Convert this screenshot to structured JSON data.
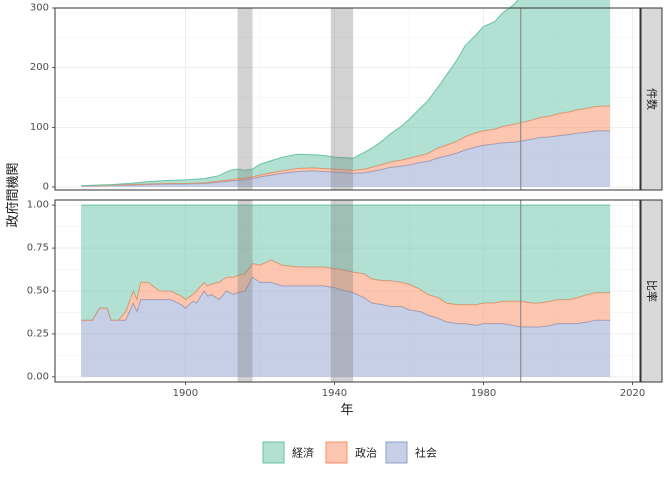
{
  "chart_data": {
    "type": "area",
    "xlabel": "年",
    "ylabel": "政府間機関",
    "x_ticks": [
      "1900",
      "1940",
      "1980",
      "2020"
    ],
    "x_tick_values": [
      1900,
      1940,
      1980,
      2020
    ],
    "xlim": [
      1865,
      2022
    ],
    "shaded_periods": [
      [
        1914,
        1918
      ],
      [
        1939,
        1945
      ]
    ],
    "vline": 1990,
    "colors": {
      "経済": "#66c2a5",
      "政治": "#fc8d62",
      "社会": "#8da0cb"
    },
    "legend": {
      "position": "bottom",
      "entries": [
        "経済",
        "政治",
        "社会"
      ]
    },
    "panels": [
      {
        "strip": "件数",
        "ylim": [
          -5,
          300
        ],
        "y_ticks": [
          "0",
          "100",
          "200",
          "300"
        ],
        "y_tick_values": [
          0,
          100,
          200,
          300
        ],
        "x": [
          1872,
          1875,
          1880,
          1885,
          1890,
          1895,
          1900,
          1905,
          1909,
          1912,
          1914,
          1916,
          1918,
          1920,
          1923,
          1926,
          1930,
          1934,
          1937,
          1940,
          1943,
          1945,
          1948,
          1950,
          1953,
          1955,
          1958,
          1960,
          1963,
          1965,
          1968,
          1970,
          1973,
          1975,
          1978,
          1980,
          1983,
          1985,
          1988,
          1990,
          1993,
          1995,
          1998,
          2000,
          2003,
          2005,
          2008,
          2010,
          2014
        ],
        "series": [
          {
            "name": "社会",
            "values": [
              2,
              2,
              3,
              3,
              4,
              5,
              5,
              6,
              8,
              10,
              11,
              12,
              14,
              17,
              20,
              23,
              26,
              27,
              26,
              25,
              24,
              23,
              24,
              26,
              30,
              33,
              35,
              37,
              41,
              43,
              49,
              52,
              57,
              62,
              67,
              70,
              72,
              74,
              75,
              77,
              80,
              83,
              84,
              86,
              88,
              90,
              92,
              94,
              94
            ]
          },
          {
            "name": "政治",
            "values": [
              0,
              0,
              0,
              1,
              1,
              1,
              1,
              1,
              2,
              2,
              3,
              3,
              3,
              3,
              4,
              4,
              5,
              5,
              5,
              5,
              5,
              5,
              6,
              7,
              8,
              9,
              10,
              11,
              12,
              13,
              17,
              18,
              20,
              22,
              24,
              24,
              25,
              27,
              30,
              31,
              32,
              33,
              35,
              37,
              38,
              39,
              40,
              41,
              42
            ]
          },
          {
            "name": "経済",
            "values": [
              0,
              1,
              1,
              2,
              4,
              5,
              6,
              7,
              9,
              16,
              16,
              13,
              13,
              18,
              20,
              23,
              24,
              22,
              22,
              20,
              20,
              20,
              28,
              32,
              40,
              47,
              57,
              65,
              79,
              88,
              103,
              117,
              137,
              152,
              164,
              175,
              180,
              190,
              200,
              210,
              235,
              240,
              200,
              195,
              191,
              189,
              188,
              190,
              183
            ]
          }
        ]
      },
      {
        "strip": "比率",
        "ylim": [
          -0.03,
          1.03
        ],
        "y_ticks": [
          "0.00",
          "0.25",
          "0.50",
          "0.75",
          "1.00"
        ],
        "y_tick_values": [
          0,
          0.25,
          0.5,
          0.75,
          1
        ],
        "x": [
          1872,
          1875,
          1877,
          1879,
          1880,
          1882,
          1884,
          1886,
          1887,
          1888,
          1890,
          1893,
          1896,
          1899,
          1900,
          1902,
          1903,
          1905,
          1906,
          1907,
          1909,
          1911,
          1913,
          1914,
          1916,
          1918,
          1920,
          1923,
          1926,
          1930,
          1934,
          1937,
          1940,
          1943,
          1945,
          1948,
          1950,
          1953,
          1955,
          1958,
          1960,
          1963,
          1965,
          1968,
          1970,
          1973,
          1975,
          1978,
          1980,
          1983,
          1985,
          1988,
          1990,
          1993,
          1995,
          1998,
          2000,
          2003,
          2005,
          2008,
          2010,
          2014
        ],
        "series": [
          {
            "name": "社会",
            "values": [
              0.33,
              0.33,
              0.4,
              0.4,
              0.33,
              0.33,
              0.33,
              0.43,
              0.38,
              0.45,
              0.45,
              0.45,
              0.45,
              0.42,
              0.4,
              0.44,
              0.43,
              0.5,
              0.47,
              0.48,
              0.45,
              0.5,
              0.48,
              0.49,
              0.5,
              0.58,
              0.55,
              0.55,
              0.53,
              0.53,
              0.53,
              0.53,
              0.52,
              0.5,
              0.49,
              0.46,
              0.43,
              0.42,
              0.41,
              0.41,
              0.39,
              0.38,
              0.36,
              0.34,
              0.32,
              0.31,
              0.31,
              0.3,
              0.31,
              0.31,
              0.31,
              0.3,
              0.29,
              0.29,
              0.29,
              0.3,
              0.31,
              0.31,
              0.31,
              0.32,
              0.33,
              0.33
            ]
          },
          {
            "name": "政治",
            "values": [
              0,
              0,
              0,
              0,
              0,
              0,
              0.05,
              0.07,
              0.07,
              0.1,
              0.1,
              0.05,
              0.05,
              0.05,
              0.05,
              0.04,
              0.07,
              0.05,
              0.06,
              0.06,
              0.1,
              0.08,
              0.1,
              0.1,
              0.1,
              0.08,
              0.1,
              0.13,
              0.12,
              0.11,
              0.11,
              0.11,
              0.11,
              0.12,
              0.12,
              0.14,
              0.14,
              0.14,
              0.15,
              0.14,
              0.15,
              0.13,
              0.12,
              0.12,
              0.11,
              0.11,
              0.11,
              0.12,
              0.12,
              0.12,
              0.13,
              0.14,
              0.15,
              0.14,
              0.14,
              0.14,
              0.14,
              0.14,
              0.15,
              0.16,
              0.16,
              0.16
            ]
          },
          {
            "name": "経済",
            "values": [
              0.67,
              0.67,
              0.6,
              0.6,
              0.67,
              0.67,
              0.62,
              0.5,
              0.55,
              0.45,
              0.45,
              0.5,
              0.5,
              0.53,
              0.55,
              0.52,
              0.5,
              0.45,
              0.47,
              0.46,
              0.45,
              0.42,
              0.42,
              0.41,
              0.4,
              0.34,
              0.35,
              0.32,
              0.35,
              0.36,
              0.36,
              0.36,
              0.37,
              0.38,
              0.39,
              0.4,
              0.43,
              0.44,
              0.44,
              0.45,
              0.46,
              0.49,
              0.52,
              0.54,
              0.57,
              0.58,
              0.58,
              0.58,
              0.57,
              0.57,
              0.56,
              0.56,
              0.56,
              0.57,
              0.57,
              0.56,
              0.55,
              0.55,
              0.54,
              0.52,
              0.51,
              0.51
            ]
          }
        ]
      }
    ]
  }
}
